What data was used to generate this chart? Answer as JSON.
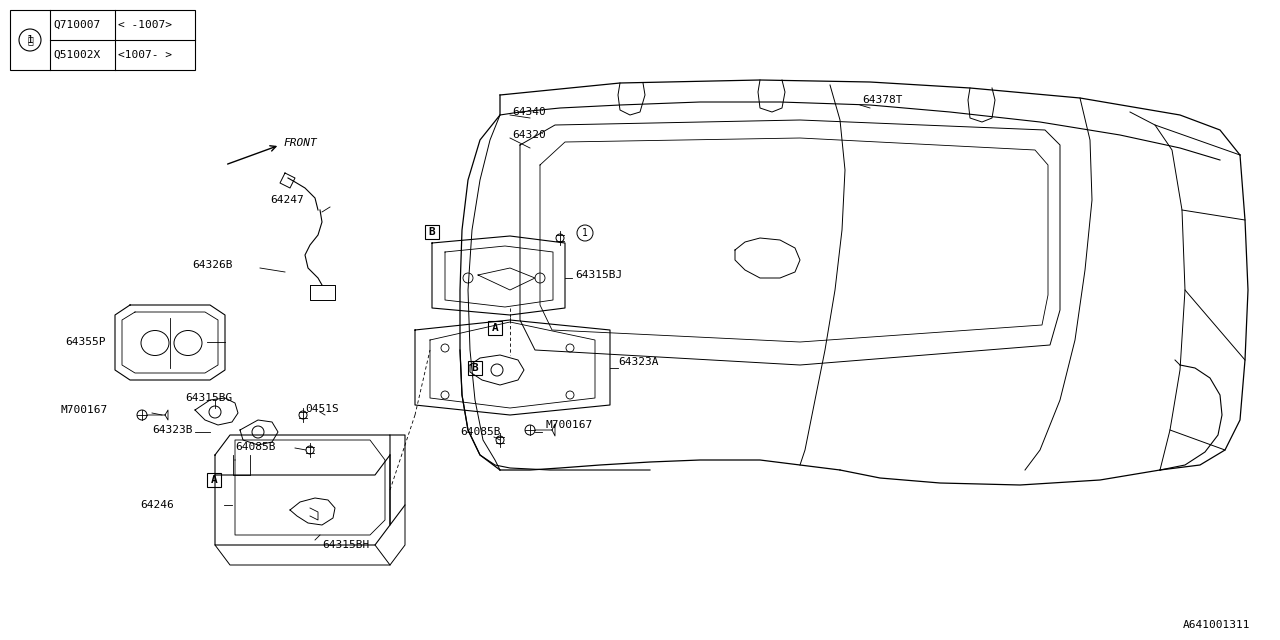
{
  "bg_color": "#ffffff",
  "line_color": "#000000",
  "figure_id": "A641001311",
  "table_rows": [
    [
      "Q710007",
      "< -1007>"
    ],
    [
      "Q51002X",
      "<1007- >"
    ]
  ]
}
